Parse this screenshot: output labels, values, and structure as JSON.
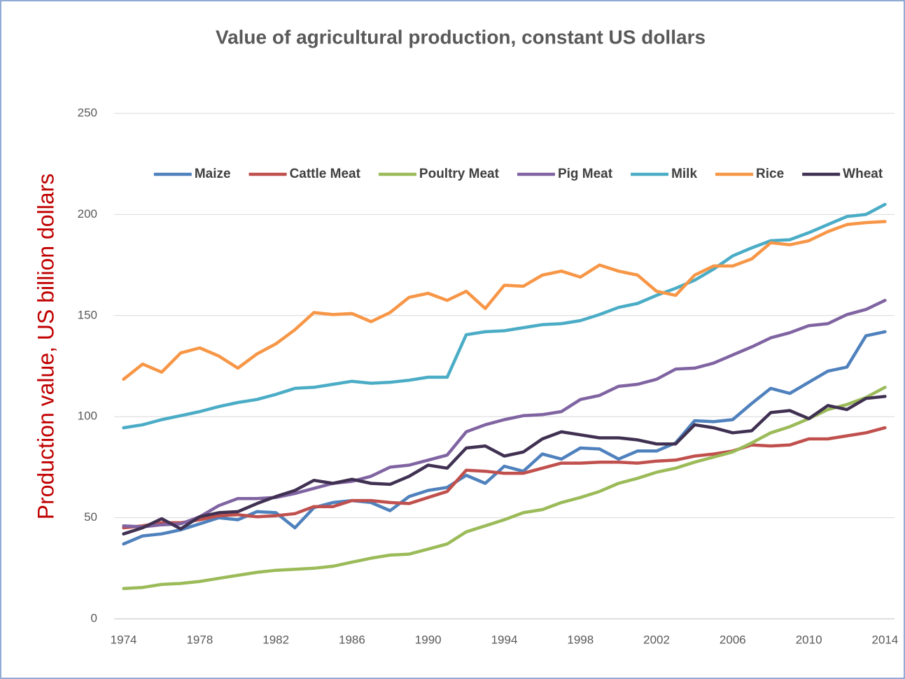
{
  "chart_data": {
    "type": "line",
    "title": "Value of agricultural production, constant US dollars",
    "y_label": "Production value, US billion dollars",
    "x": [
      1974,
      1975,
      1976,
      1977,
      1978,
      1979,
      1980,
      1981,
      1982,
      1983,
      1984,
      1985,
      1986,
      1987,
      1988,
      1989,
      1990,
      1991,
      1992,
      1993,
      1994,
      1995,
      1996,
      1997,
      1998,
      1999,
      2000,
      2001,
      2002,
      2003,
      2004,
      2005,
      2006,
      2007,
      2008,
      2009,
      2010,
      2011,
      2012,
      2013,
      2014
    ],
    "xlim": [
      1973.5,
      2014.5
    ],
    "xticks": [
      1974,
      1978,
      1982,
      1986,
      1990,
      1994,
      1998,
      2002,
      2006,
      2010,
      2014
    ],
    "ylim": [
      0,
      250
    ],
    "yticks": [
      0,
      50,
      100,
      150,
      200,
      250
    ],
    "grid": true,
    "legend": "top",
    "series": [
      {
        "name": "Maize",
        "color": "#4f81bd",
        "values": [
          37,
          41,
          42,
          44,
          47,
          50,
          49,
          53,
          52.5,
          45,
          55,
          57.5,
          58.5,
          57.5,
          53.5,
          60.5,
          63.5,
          65,
          71,
          67,
          75.5,
          73,
          81.5,
          79,
          84.5,
          84,
          79,
          83,
          83,
          87,
          98,
          97.5,
          98.5,
          106.5,
          114,
          111.5,
          117,
          122.5,
          124.5,
          140,
          142
        ]
      },
      {
        "name": "Cattle Meat",
        "color": "#c0504d",
        "values": [
          45,
          46,
          47.5,
          47.5,
          49,
          51,
          51.5,
          50.5,
          51,
          52,
          55.5,
          55.5,
          58.5,
          58.5,
          57.5,
          57,
          60,
          63,
          73.5,
          73,
          72,
          72,
          74.5,
          77,
          77,
          77.5,
          77.5,
          77,
          78,
          78.5,
          80.5,
          81.5,
          83,
          86,
          85.5,
          86,
          89,
          89,
          90.5,
          92,
          94.5
        ]
      },
      {
        "name": "Poultry Meat",
        "color": "#9bbb59",
        "values": [
          15,
          15.5,
          17,
          17.5,
          18.5,
          20,
          21.5,
          23,
          24,
          24.5,
          25,
          26,
          28,
          30,
          31.5,
          32,
          34.5,
          37,
          43,
          46,
          49,
          52.5,
          54,
          57.5,
          60,
          63,
          67,
          69.5,
          72.5,
          74.5,
          77.5,
          80,
          82.5,
          87,
          92,
          95,
          99,
          103.5,
          106,
          109.5,
          114.5
        ]
      },
      {
        "name": "Pig Meat",
        "color": "#8064a2",
        "values": [
          46,
          45.5,
          46.5,
          47,
          50.5,
          56,
          59.5,
          59.5,
          60,
          62,
          64.5,
          67,
          68,
          70.5,
          75,
          76,
          78.5,
          81,
          92.5,
          96,
          98.5,
          100.5,
          101,
          102.5,
          108.5,
          110.5,
          115,
          116,
          118.5,
          123.5,
          124,
          126.5,
          130.5,
          134.5,
          139,
          141.5,
          145,
          146,
          150.5,
          153,
          157.5
        ]
      },
      {
        "name": "Milk",
        "color": "#4bacc6",
        "values": [
          94.5,
          96,
          98.5,
          100.5,
          102.5,
          105,
          107,
          108.5,
          111,
          114,
          114.5,
          116,
          117.5,
          116.5,
          117,
          118,
          119.5,
          119.5,
          140.5,
          142,
          142.5,
          144,
          145.5,
          146,
          147.5,
          150.5,
          154,
          156,
          160,
          163.5,
          167.5,
          173,
          179.5,
          183.5,
          187,
          187.5,
          191,
          195,
          199,
          200,
          205
        ]
      },
      {
        "name": "Rice",
        "color": "#f79646",
        "values": [
          118.5,
          126,
          122,
          131.5,
          134,
          130,
          124,
          131,
          136,
          143,
          151.5,
          150.5,
          151,
          147,
          151.5,
          159,
          161,
          157.5,
          162,
          153.5,
          165,
          164.5,
          170,
          172,
          169,
          175,
          172,
          170,
          162,
          160,
          170,
          174.5,
          174.5,
          178,
          186,
          185,
          187,
          191.5,
          195,
          196,
          196.5
        ]
      },
      {
        "name": "Wheat",
        "color": "#403152",
        "values": [
          42,
          45,
          49.5,
          44.5,
          50.5,
          52.5,
          53,
          57,
          60.5,
          63.5,
          68.5,
          67,
          69,
          67,
          66.5,
          70.5,
          76,
          74.5,
          84.5,
          85.5,
          80.5,
          82.5,
          89,
          92.5,
          91,
          89.5,
          89.5,
          88.5,
          86.5,
          86.5,
          96,
          94.5,
          92,
          93,
          102,
          103,
          99,
          105.5,
          103.5,
          109,
          110
        ]
      }
    ]
  }
}
